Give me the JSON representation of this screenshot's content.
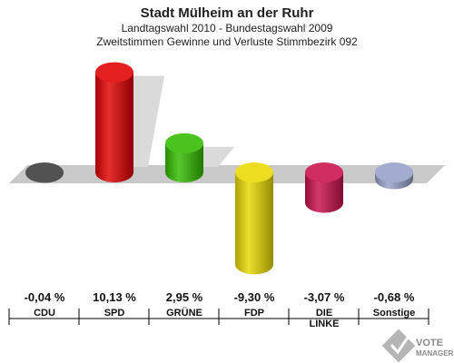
{
  "header": {
    "title": "Stadt Mülheim an der Ruhr",
    "subtitle1": "Landtagswahl 2010 - Bundestagswahl 2009",
    "subtitle2": "Zweitstimmen Gewinne und Verluste Stimmbezirk 092"
  },
  "logo": {
    "line1": "VOTE",
    "line2": "MANAGER"
  },
  "chart_data": {
    "type": "bar",
    "title": "Stadt Mülheim an der Ruhr",
    "subtitle": "Zweitstimmen Gewinne und Verluste Stimmbezirk 092",
    "xlabel": "",
    "ylabel": "",
    "grid": false,
    "legend": "none",
    "categories": [
      {
        "line1": "CDU",
        "line2": ""
      },
      {
        "line1": "SPD",
        "line2": ""
      },
      {
        "line1": "GRÜNE",
        "line2": ""
      },
      {
        "line1": "FDP",
        "line2": ""
      },
      {
        "line1": "DIE",
        "line2": "LINKE"
      },
      {
        "line1": "Sonstige",
        "line2": ""
      }
    ],
    "values": [
      -0.04,
      10.13,
      2.95,
      -9.3,
      -3.07,
      -0.68
    ],
    "value_labels": [
      "-0,04 %",
      "10,13 %",
      "2,95 %",
      "-9,30 %",
      "-3,07 %",
      "-0,68 %"
    ],
    "colors": [
      "#3a3a3a",
      "#e00000",
      "#33bb00",
      "#e8d800",
      "#c8104a",
      "#96a0c8"
    ]
  }
}
